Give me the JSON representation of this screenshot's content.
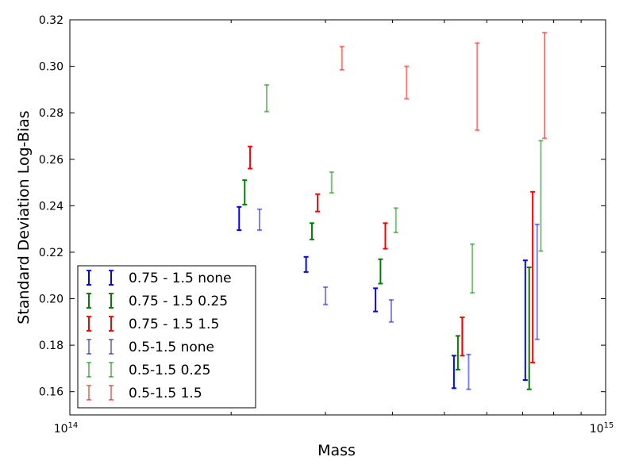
{
  "chart_data": {
    "type": "errorbar",
    "xlabel": "Mass",
    "ylabel": "Standard Deviation Log-Bias",
    "xscale": "log",
    "xlim": [
      100000000000000.0,
      1000000000000000.0
    ],
    "ylim": [
      0.15,
      0.32
    ],
    "xticks": [
      {
        "value": 100000000000000.0,
        "base": "10",
        "exp": "14"
      },
      {
        "value": 1000000000000000.0,
        "base": "10",
        "exp": "15"
      }
    ],
    "yticks": [
      "0.16",
      "0.18",
      "0.20",
      "0.22",
      "0.24",
      "0.26",
      "0.28",
      "0.30",
      "0.32"
    ],
    "grid": false,
    "legend_position": "lower-left",
    "series": [
      {
        "name": "0.75 - 1.5 none",
        "color": "#0000ff",
        "alpha": 1.0,
        "points": [
          {
            "x": 207000000000000.0,
            "low": 0.2295,
            "high": 0.2395
          },
          {
            "x": 276000000000000.0,
            "low": 0.2115,
            "high": 0.218
          },
          {
            "x": 372000000000000.0,
            "low": 0.1945,
            "high": 0.2045
          },
          {
            "x": 521000000000000.0,
            "low": 0.1615,
            "high": 0.1755
          },
          {
            "x": 708000000000000.0,
            "low": 0.165,
            "high": 0.2165
          }
        ]
      },
      {
        "name": "0.75 - 1.5 0.25",
        "color": "#008000",
        "alpha": 1.0,
        "points": [
          {
            "x": 212000000000000.0,
            "low": 0.2405,
            "high": 0.251
          },
          {
            "x": 283000000000000.0,
            "low": 0.2255,
            "high": 0.2325
          },
          {
            "x": 380000000000000.0,
            "low": 0.2065,
            "high": 0.217
          },
          {
            "x": 530000000000000.0,
            "low": 0.1695,
            "high": 0.184
          },
          {
            "x": 720000000000000.0,
            "low": 0.161,
            "high": 0.2135
          }
        ]
      },
      {
        "name": "0.75 - 1.5 1.5",
        "color": "#ff0000",
        "alpha": 1.0,
        "points": [
          {
            "x": 217000000000000.0,
            "low": 0.256,
            "high": 0.2655
          },
          {
            "x": 290000000000000.0,
            "low": 0.2375,
            "high": 0.245
          },
          {
            "x": 388000000000000.0,
            "low": 0.2215,
            "high": 0.2325
          },
          {
            "x": 540000000000000.0,
            "low": 0.1755,
            "high": 0.192
          },
          {
            "x": 731000000000000.0,
            "low": 0.1725,
            "high": 0.246
          }
        ]
      },
      {
        "name": "0.5-1.5 none",
        "color": "#0000ff",
        "alpha": 0.5,
        "points": [
          {
            "x": 226000000000000.0,
            "low": 0.2295,
            "high": 0.2385
          },
          {
            "x": 300000000000000.0,
            "low": 0.1975,
            "high": 0.205
          },
          {
            "x": 398000000000000.0,
            "low": 0.19,
            "high": 0.1995
          },
          {
            "x": 555000000000000.0,
            "low": 0.161,
            "high": 0.176
          },
          {
            "x": 745000000000000.0,
            "low": 0.1825,
            "high": 0.232
          }
        ]
      },
      {
        "name": "0.5-1.5 0.25",
        "color": "#008000",
        "alpha": 0.5,
        "points": [
          {
            "x": 233000000000000.0,
            "low": 0.2805,
            "high": 0.292
          },
          {
            "x": 308000000000000.0,
            "low": 0.2455,
            "high": 0.2545
          },
          {
            "x": 406000000000000.0,
            "low": 0.2285,
            "high": 0.239
          },
          {
            "x": 564000000000000.0,
            "low": 0.2025,
            "high": 0.2235
          },
          {
            "x": 757000000000000.0,
            "low": 0.2205,
            "high": 0.268
          }
        ]
      },
      {
        "name": "0.5-1.5 1.5",
        "color": "#ff0000",
        "alpha": 0.5,
        "points": [
          {
            "x": 322000000000000.0,
            "low": 0.2985,
            "high": 0.3085
          },
          {
            "x": 425000000000000.0,
            "low": 0.286,
            "high": 0.3
          },
          {
            "x": 576000000000000.0,
            "low": 0.2725,
            "high": 0.31
          },
          {
            "x": 769000000000000.0,
            "low": 0.269,
            "high": 0.3145
          }
        ]
      }
    ]
  }
}
